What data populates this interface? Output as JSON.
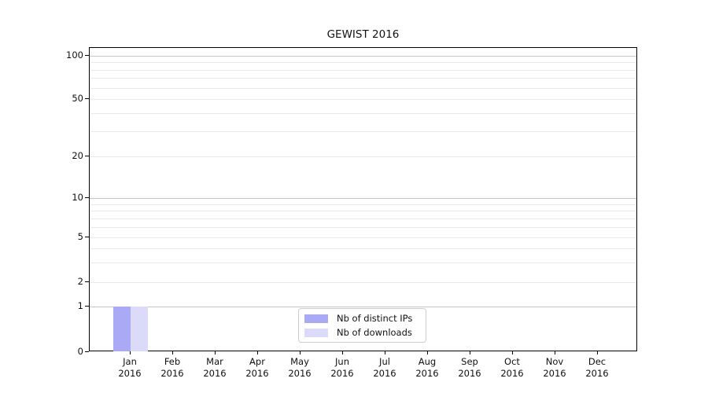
{
  "title": "GEWIST 2016",
  "chart_data": {
    "type": "bar",
    "title": "GEWIST 2016",
    "categories": [
      "Jan",
      "Feb",
      "Mar",
      "Apr",
      "May",
      "Jun",
      "Jul",
      "Aug",
      "Sep",
      "Oct",
      "Nov",
      "Dec"
    ],
    "x_year": "2016",
    "series": [
      {
        "name": "Nb of distinct IPs",
        "color": "#a9a9f5",
        "values": [
          1,
          0,
          0,
          0,
          0,
          0,
          0,
          0,
          0,
          0,
          0,
          0
        ]
      },
      {
        "name": "Nb of downloads",
        "color": "#dbdbf9",
        "values": [
          1,
          0,
          0,
          0,
          0,
          0,
          0,
          0,
          0,
          0,
          0,
          0
        ]
      }
    ],
    "y_ticks": [
      0,
      1,
      2,
      5,
      10,
      20,
      50,
      100
    ],
    "ylim": [
      0,
      100
    ],
    "yscale": "log-like with 0 baseline",
    "grid": true,
    "legend_position": "bottom-center"
  }
}
